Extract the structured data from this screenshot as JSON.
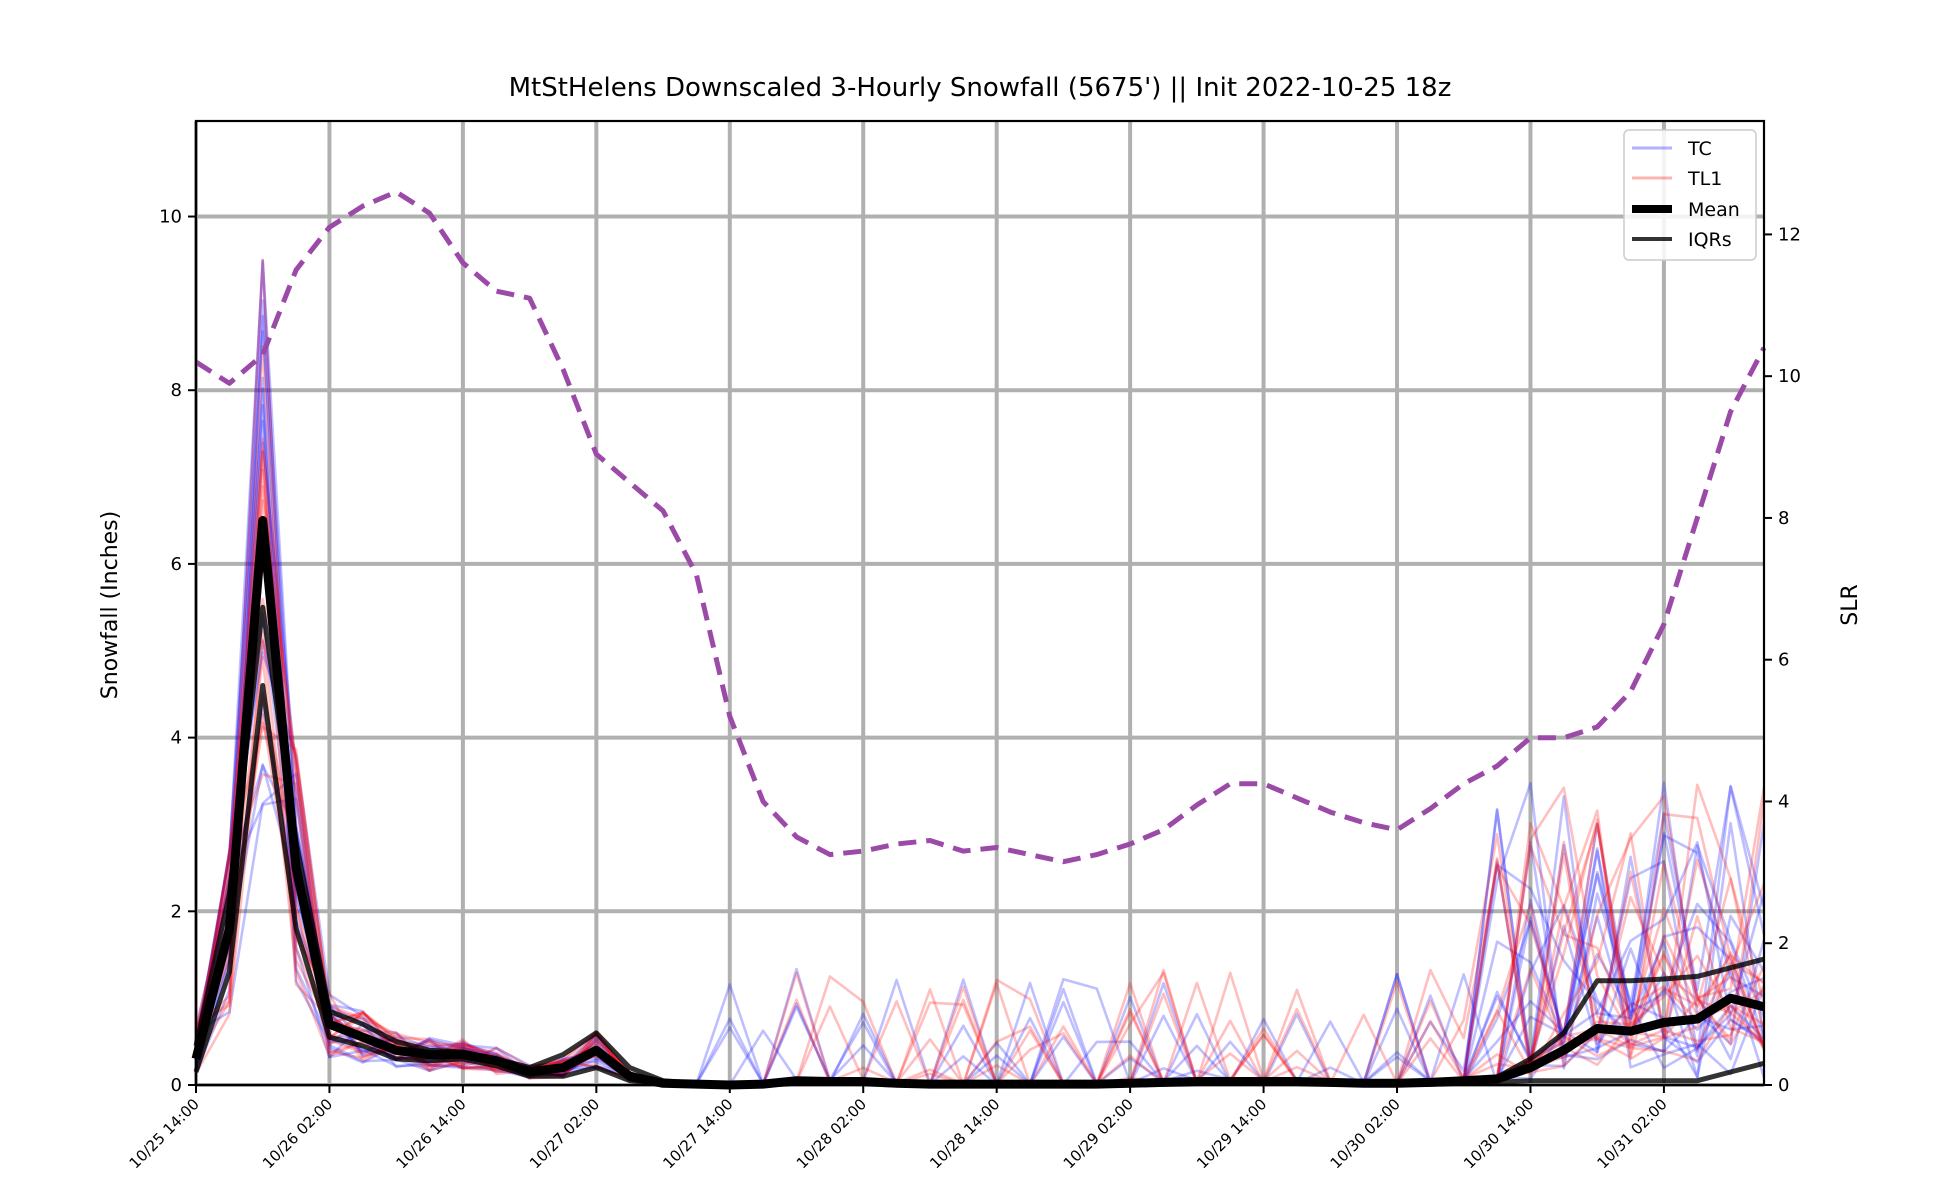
{
  "chart_data": {
    "type": "line",
    "title": "MtStHelens Downscaled 3-Hourly Snowfall (5675') || Init 2022-10-25 18z",
    "ylabel": "Snowfall (Inches)",
    "y2label": "SLR",
    "xlabel": "",
    "ylim": [
      0,
      11.1
    ],
    "y2lim": [
      0,
      13.6
    ],
    "yticks": [
      0,
      2,
      4,
      6,
      8,
      10
    ],
    "y2ticks": [
      0,
      2,
      4,
      6,
      8,
      10,
      12
    ],
    "x_start": "10/25 14:00",
    "x_step_hours": 3,
    "x_count": 48,
    "xtick_labels": [
      "10/25 14:00",
      "10/26 02:00",
      "10/26 14:00",
      "10/27 02:00",
      "10/27 14:00",
      "10/28 02:00",
      "10/28 14:00",
      "10/29 02:00",
      "10/29 14:00",
      "10/30 02:00",
      "10/30 14:00",
      "10/31 02:00"
    ],
    "xtick_indices": [
      0,
      4,
      8,
      12,
      16,
      20,
      24,
      28,
      32,
      36,
      40,
      44
    ],
    "grid": true,
    "legend_position": "top-right",
    "legend": [
      {
        "label": "TC",
        "color": "#0000ff",
        "style": "thin-translucent"
      },
      {
        "label": "TL1",
        "color": "#ff0000",
        "style": "thin-translucent"
      },
      {
        "label": "Mean",
        "color": "#000000",
        "style": "thick"
      },
      {
        "label": "IQRs",
        "color": "#000000",
        "style": "medium"
      }
    ],
    "colors": {
      "tc": "#0000ff",
      "tl1": "#ff0000",
      "mean": "#000000",
      "slr": "#9b4aa8"
    },
    "series": [
      {
        "name": "Mean",
        "values": [
          0.3,
          1.8,
          6.5,
          2.5,
          0.7,
          0.55,
          0.4,
          0.35,
          0.35,
          0.28,
          0.15,
          0.2,
          0.4,
          0.1,
          0.02,
          0.01,
          0.0,
          0.01,
          0.05,
          0.04,
          0.04,
          0.02,
          0.01,
          0.01,
          0.01,
          0.01,
          0.01,
          0.01,
          0.02,
          0.03,
          0.04,
          0.04,
          0.04,
          0.04,
          0.03,
          0.02,
          0.02,
          0.03,
          0.05,
          0.07,
          0.2,
          0.4,
          0.65,
          0.62,
          0.72,
          0.76,
          1.0,
          0.9
        ]
      },
      {
        "name": "IQR upper",
        "values": [
          0.45,
          2.2,
          5.5,
          2.8,
          0.85,
          0.7,
          0.5,
          0.4,
          0.38,
          0.3,
          0.2,
          0.35,
          0.6,
          0.2,
          0.05,
          0.02,
          0.01,
          0.02,
          0.06,
          0.06,
          0.05,
          0.03,
          0.02,
          0.02,
          0.02,
          0.02,
          0.02,
          0.02,
          0.03,
          0.04,
          0.05,
          0.05,
          0.05,
          0.05,
          0.04,
          0.03,
          0.03,
          0.05,
          0.06,
          0.09,
          0.3,
          0.6,
          1.2,
          1.2,
          1.22,
          1.25,
          1.35,
          1.45
        ]
      },
      {
        "name": "IQR lower",
        "values": [
          0.15,
          1.3,
          4.6,
          1.8,
          0.55,
          0.45,
          0.3,
          0.28,
          0.3,
          0.22,
          0.1,
          0.1,
          0.2,
          0.05,
          0.01,
          0.0,
          0.0,
          0.0,
          0.02,
          0.02,
          0.02,
          0.01,
          0.0,
          0.0,
          0.0,
          0.0,
          0.0,
          0.0,
          0.0,
          0.01,
          0.02,
          0.02,
          0.02,
          0.02,
          0.01,
          0.01,
          0.01,
          0.01,
          0.02,
          0.03,
          0.05,
          0.05,
          0.05,
          0.05,
          0.05,
          0.05,
          0.15,
          0.25
        ]
      },
      {
        "name": "SLR",
        "axis": "y2",
        "values": [
          10.2,
          9.9,
          10.3,
          11.5,
          12.1,
          12.4,
          12.6,
          12.3,
          11.6,
          11.2,
          11.1,
          10.1,
          8.9,
          8.5,
          8.1,
          7.2,
          5.2,
          4.0,
          3.5,
          3.25,
          3.3,
          3.4,
          3.45,
          3.3,
          3.35,
          3.25,
          3.15,
          3.25,
          3.4,
          3.6,
          3.95,
          4.25,
          4.25,
          4.05,
          3.85,
          3.7,
          3.6,
          3.9,
          4.25,
          4.5,
          4.9,
          4.9,
          5.05,
          5.55,
          6.5,
          8.0,
          9.5,
          10.4
        ]
      }
    ]
  }
}
